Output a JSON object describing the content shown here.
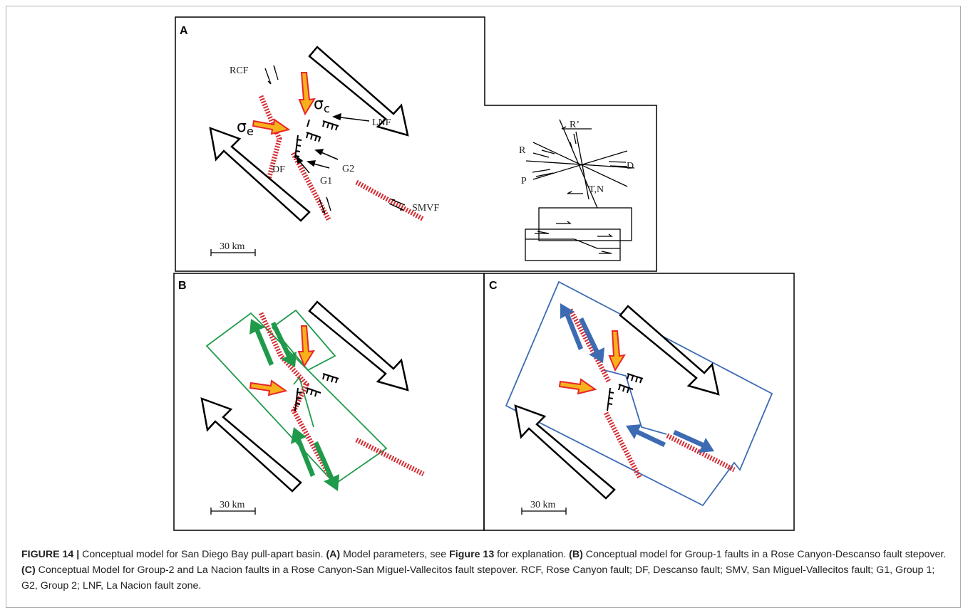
{
  "panels": {
    "a": {
      "letter": "A",
      "scale": "30 km",
      "labels": {
        "rcf": "RCF",
        "lnf": "LNF",
        "df": "DF",
        "g1": "G1",
        "g2": "G2",
        "smvf": "SMVF",
        "sigma_c_sym": "σ",
        "sigma_c_sub": "c",
        "sigma_e_sym": "σ",
        "sigma_e_sub": "e"
      },
      "riedel": {
        "r": "R",
        "r_prime": "R’",
        "d": "D",
        "p": "P",
        "tn": "T,N"
      }
    },
    "b": {
      "letter": "B",
      "scale": "30 km"
    },
    "c": {
      "letter": "C",
      "scale": "30 km"
    }
  },
  "colors": {
    "fault": "#d42a32",
    "arrow_fill": "#f7b21b",
    "arrow_edge": "#e8262a",
    "green": "#1f9a4b",
    "blue": "#3d6bb3"
  },
  "caption": {
    "figure": "FIGURE 14 |",
    "intro": " Conceptual model for San Diego Bay pull-apart basin. ",
    "a_tag": "(A)",
    "a_text": " Model parameters, see ",
    "a_ref": "Figure 13",
    "a_text2": " for explanation. ",
    "b_tag": "(B)",
    "b_text": " Conceptual model for Group-1 faults in a Rose Canyon-Descanso fault stepover. ",
    "c_tag": "(C)",
    "c_text": " Conceptual Model for Group-2 and La Nacion faults in a Rose Canyon-San Miguel-Vallecitos fault stepover. RCF, Rose Canyon fault; DF, Descanso fault; SMV, San Miguel-Vallecitos fault; G1, Group 1; G2, Group 2; LNF, La Nacion fault zone."
  }
}
